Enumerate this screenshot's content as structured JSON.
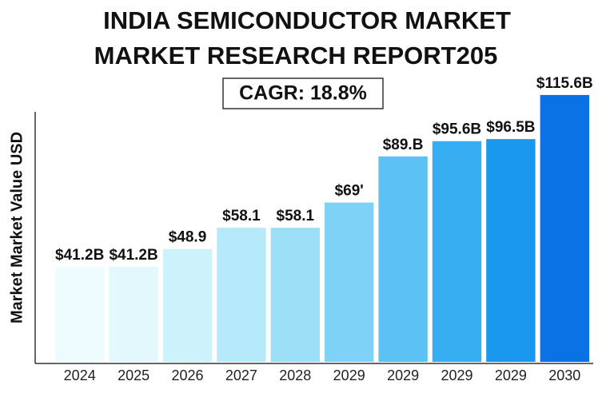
{
  "chart_data": {
    "type": "bar",
    "title": [
      "INDIA SEMICONDUCTOR MARKET",
      "MARKET RESEARCH REPORT205"
    ],
    "subtitle": "CAGR: 18.8%",
    "y_label": "Market Market Value USD",
    "categories": [
      "2024",
      "2025",
      "2026",
      "2027",
      "2028",
      "2029",
      "2029",
      "2029",
      "2029",
      "2030"
    ],
    "values": [
      41.2,
      41.2,
      48.9,
      58.1,
      58.1,
      69,
      89,
      95.6,
      96.5,
      115.6
    ],
    "value_labels": [
      "$41.2B",
      "$41.2B",
      "$48.9",
      "$58.1",
      "$58.1",
      "$69'",
      "$89.B",
      "$95.6B",
      "$96.5B",
      "$115.6B"
    ],
    "colors": [
      "#eefcff",
      "#e2f8fd",
      "#cdf2fb",
      "#b6eafa",
      "#9ddff7",
      "#7dd2f5",
      "#5cc2f4",
      "#38aef2",
      "#1a98ef",
      "#0b72e6"
    ]
  }
}
